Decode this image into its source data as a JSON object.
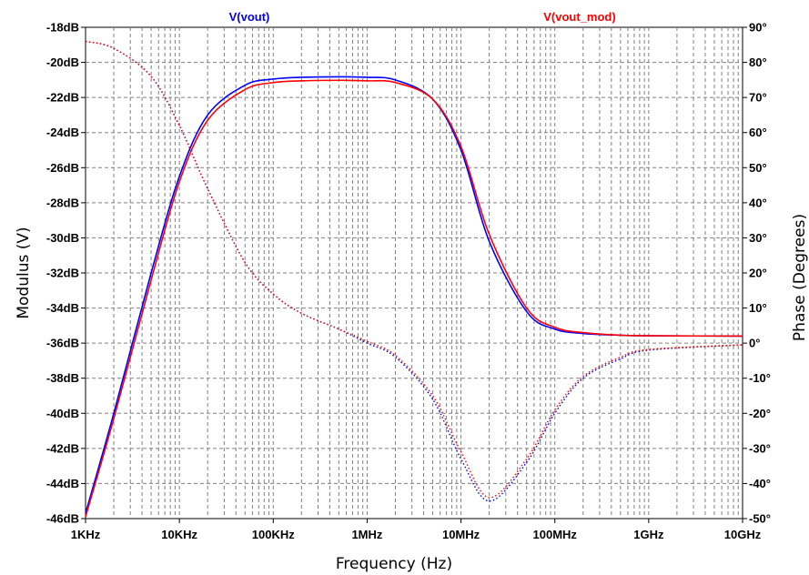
{
  "chart_data": {
    "type": "line",
    "title": "",
    "xlabel": "Frequency (Hz)",
    "ylabel_left": "Modulus (V)",
    "ylabel_right": "Phase (Degrees)",
    "x_scale": "log",
    "xlim": [
      1000,
      10000000000
    ],
    "ylim_left": [
      -46,
      -18
    ],
    "ylim_right": [
      -50,
      90
    ],
    "grid": true,
    "x_tick_values": [
      1000,
      10000,
      100000,
      1000000,
      10000000,
      100000000,
      1000000000,
      10000000000
    ],
    "x_tick_labels": [
      "1KHz",
      "10KHz",
      "100KHz",
      "1MHz",
      "10MHz",
      "100MHz",
      "1GHz",
      "10GHz"
    ],
    "y_left_tick_values": [
      -18,
      -20,
      -22,
      -24,
      -26,
      -28,
      -30,
      -32,
      -34,
      -36,
      -38,
      -40,
      -42,
      -44,
      -46
    ],
    "y_left_tick_labels": [
      "-18dB",
      "-20dB",
      "-22dB",
      "-24dB",
      "-26dB",
      "-28dB",
      "-30dB",
      "-32dB",
      "-34dB",
      "-36dB",
      "-38dB",
      "-40dB",
      "-42dB",
      "-44dB",
      "-46dB"
    ],
    "y_right_tick_values": [
      90,
      80,
      70,
      60,
      50,
      40,
      30,
      20,
      10,
      0,
      -10,
      -20,
      -30,
      -40,
      -50
    ],
    "y_right_tick_labels": [
      "90°",
      "80°",
      "70°",
      "60°",
      "50°",
      "40°",
      "30°",
      "20°",
      "10°",
      "0°",
      "-10°",
      "-20°",
      "-30°",
      "-40°",
      "-50°"
    ],
    "series": [
      {
        "name": "V(vout)",
        "color": "#0000ff",
        "axis": "left",
        "style": "solid",
        "quantity": "magnitude_dB",
        "x": [
          1000,
          2000,
          5000,
          10000,
          20000,
          50000,
          100000,
          200000,
          500000,
          1000000,
          2000000,
          5000000,
          10000000,
          20000000,
          50000000,
          100000000,
          200000000,
          500000000,
          1000000000,
          10000000000
        ],
        "y": [
          -45.7,
          -40.0,
          -32.0,
          -26.5,
          -23.0,
          -21.3,
          -20.95,
          -20.85,
          -20.82,
          -20.85,
          -21.0,
          -22.1,
          -25.0,
          -30.2,
          -34.2,
          -35.2,
          -35.45,
          -35.55,
          -35.58,
          -35.6
        ]
      },
      {
        "name": "V(vout_mod)",
        "color": "#ff0000",
        "axis": "left",
        "style": "solid",
        "quantity": "magnitude_dB",
        "x": [
          1000,
          2000,
          5000,
          10000,
          20000,
          50000,
          100000,
          200000,
          500000,
          1000000,
          2000000,
          5000000,
          10000000,
          20000000,
          50000000,
          100000000,
          200000000,
          500000000,
          1000000000,
          10000000000
        ],
        "y": [
          -45.9,
          -40.3,
          -32.4,
          -26.8,
          -23.3,
          -21.55,
          -21.15,
          -21.05,
          -21.02,
          -21.05,
          -21.15,
          -22.1,
          -24.8,
          -29.8,
          -34.0,
          -35.1,
          -35.4,
          -35.55,
          -35.58,
          -35.6
        ]
      },
      {
        "name": "V(vout) phase",
        "color": "#0000ff",
        "axis": "right",
        "style": "dotted",
        "quantity": "phase_deg",
        "x": [
          1000,
          2000,
          5000,
          10000,
          20000,
          50000,
          100000,
          200000,
          500000,
          1000000,
          2000000,
          5000000,
          10000000,
          20000000,
          50000000,
          100000000,
          200000000,
          500000000,
          1000000000,
          10000000000
        ],
        "y": [
          86.0,
          84.0,
          76.0,
          62.0,
          44.0,
          23.0,
          14.0,
          8.5,
          4.0,
          0.0,
          -4.0,
          -16.0,
          -33.0,
          -45.0,
          -34.0,
          -20.0,
          -10.0,
          -4.5,
          -2.0,
          -0.5
        ]
      },
      {
        "name": "V(vout_mod) phase",
        "color": "#ff0000",
        "axis": "right",
        "style": "dotted",
        "quantity": "phase_deg",
        "x": [
          1000,
          2000,
          5000,
          10000,
          20000,
          50000,
          100000,
          200000,
          500000,
          1000000,
          2000000,
          5000000,
          10000000,
          20000000,
          50000000,
          100000000,
          200000000,
          500000000,
          1000000000,
          10000000000
        ],
        "y": [
          86.0,
          84.0,
          76.0,
          62.0,
          44.0,
          23.0,
          14.0,
          8.5,
          4.0,
          0.5,
          -3.5,
          -15.0,
          -31.0,
          -44.0,
          -33.0,
          -19.0,
          -9.5,
          -4.0,
          -1.8,
          -0.5
        ]
      }
    ]
  }
}
